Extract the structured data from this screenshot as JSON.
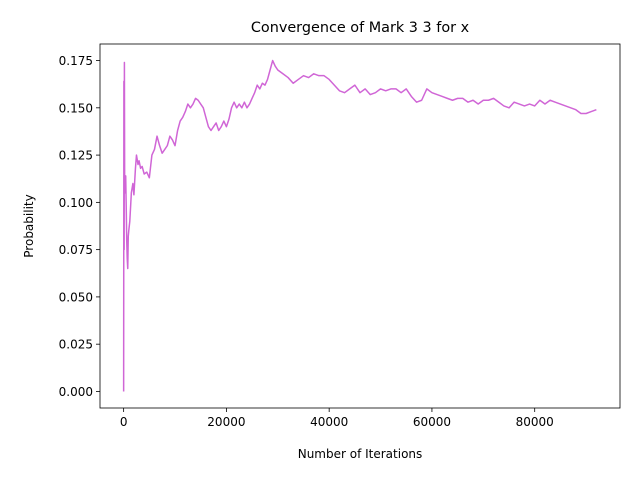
{
  "chart_data": {
    "type": "line",
    "title": "Convergence of Mark 3 3 for x",
    "xlabel": "Number of Iterations",
    "ylabel": "Probability",
    "xlim": [
      -4600,
      96600
    ],
    "ylim": [
      -0.00875,
      0.18375
    ],
    "xticks": [
      0,
      20000,
      40000,
      60000,
      80000
    ],
    "xtick_labels": [
      "0",
      "20000",
      "40000",
      "60000",
      "80000"
    ],
    "yticks": [
      0.0,
      0.025,
      0.05,
      0.075,
      0.1,
      0.125,
      0.15,
      0.175
    ],
    "ytick_labels": [
      "0.000",
      "0.025",
      "0.050",
      "0.075",
      "0.100",
      "0.125",
      "0.150",
      "0.175"
    ],
    "grid": false,
    "series": [
      {
        "color": "#d066d6",
        "x": [
          0,
          50,
          100,
          150,
          200,
          300,
          400,
          500,
          600,
          700,
          800,
          900,
          1000,
          1200,
          1500,
          1800,
          2000,
          2300,
          2500,
          2800,
          3000,
          3300,
          3600,
          4000,
          4500,
          5000,
          5500,
          6000,
          6500,
          7000,
          7500,
          8000,
          8500,
          9000,
          9500,
          10000,
          10500,
          11000,
          11500,
          12000,
          12500,
          13000,
          13500,
          14000,
          14500,
          15000,
          15500,
          16000,
          16500,
          17000,
          17500,
          18000,
          18500,
          19000,
          19500,
          20000,
          20500,
          21000,
          21500,
          22000,
          22500,
          23000,
          23500,
          24000,
          24500,
          25000,
          25500,
          26000,
          26500,
          27000,
          27500,
          28000,
          28500,
          29000,
          29500,
          30000,
          31000,
          32000,
          33000,
          34000,
          35000,
          36000,
          37000,
          38000,
          39000,
          40000,
          41000,
          42000,
          43000,
          44000,
          45000,
          46000,
          47000,
          48000,
          49000,
          50000,
          51000,
          52000,
          53000,
          54000,
          55000,
          56000,
          57000,
          58000,
          59000,
          60000,
          61000,
          62000,
          63000,
          64000,
          65000,
          66000,
          67000,
          68000,
          69000,
          70000,
          71000,
          72000,
          73000,
          74000,
          75000,
          76000,
          77000,
          78000,
          79000,
          80000,
          81000,
          82000,
          83000,
          84000,
          85000,
          86000,
          87000,
          88000,
          89000,
          90000,
          91000,
          92000
        ],
        "y": [
          0.0,
          0.164,
          0.075,
          0.174,
          0.11,
          0.105,
          0.114,
          0.098,
          0.08,
          0.07,
          0.065,
          0.082,
          0.085,
          0.09,
          0.105,
          0.11,
          0.104,
          0.118,
          0.125,
          0.12,
          0.122,
          0.118,
          0.119,
          0.115,
          0.116,
          0.113,
          0.125,
          0.128,
          0.135,
          0.13,
          0.126,
          0.128,
          0.13,
          0.135,
          0.133,
          0.13,
          0.138,
          0.143,
          0.145,
          0.148,
          0.152,
          0.15,
          0.152,
          0.155,
          0.154,
          0.152,
          0.15,
          0.145,
          0.14,
          0.138,
          0.14,
          0.142,
          0.138,
          0.14,
          0.143,
          0.14,
          0.144,
          0.15,
          0.153,
          0.15,
          0.152,
          0.15,
          0.153,
          0.15,
          0.152,
          0.155,
          0.158,
          0.162,
          0.16,
          0.163,
          0.162,
          0.165,
          0.17,
          0.175,
          0.172,
          0.17,
          0.168,
          0.166,
          0.163,
          0.165,
          0.167,
          0.166,
          0.168,
          0.167,
          0.167,
          0.165,
          0.162,
          0.159,
          0.158,
          0.16,
          0.162,
          0.158,
          0.16,
          0.157,
          0.158,
          0.16,
          0.159,
          0.16,
          0.16,
          0.158,
          0.16,
          0.156,
          0.153,
          0.154,
          0.16,
          0.158,
          0.157,
          0.156,
          0.155,
          0.154,
          0.155,
          0.155,
          0.153,
          0.154,
          0.152,
          0.154,
          0.154,
          0.155,
          0.153,
          0.151,
          0.15,
          0.153,
          0.152,
          0.151,
          0.152,
          0.151,
          0.154,
          0.152,
          0.154,
          0.153,
          0.152,
          0.151,
          0.15,
          0.149,
          0.147,
          0.147,
          0.148,
          0.149
        ]
      }
    ]
  }
}
